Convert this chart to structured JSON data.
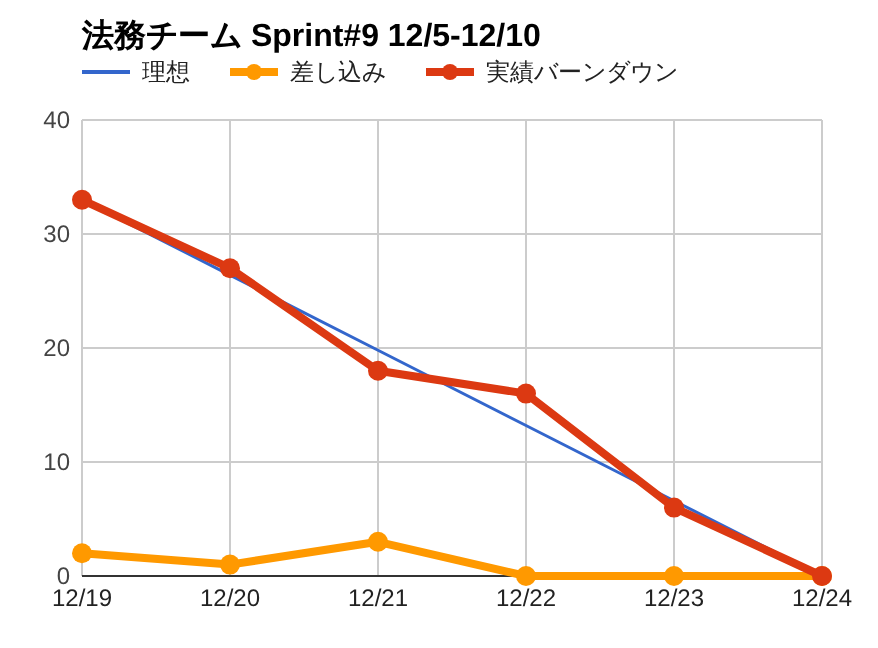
{
  "chart_data": {
    "type": "line",
    "title": "法務チーム Sprint#9 12/5-12/10",
    "categories": [
      "12/19",
      "12/20",
      "12/21",
      "12/22",
      "12/23",
      "12/24"
    ],
    "series": [
      {
        "name": "理想",
        "color": "#3366cc",
        "values": [
          33,
          26.4,
          19.8,
          13.2,
          6.6,
          0
        ],
        "marker": "none"
      },
      {
        "name": "差し込み",
        "color": "#ff9900",
        "values": [
          2,
          1,
          3,
          0,
          0,
          0
        ],
        "marker": "circle"
      },
      {
        "name": "実績バーンダウン",
        "color": "#dc3912",
        "values": [
          33,
          27,
          18,
          16,
          6,
          0
        ],
        "marker": "circle"
      }
    ],
    "ylim": [
      0,
      40
    ],
    "yticks": [
      0,
      10,
      20,
      30,
      40
    ],
    "grid": true,
    "legend": "top left"
  }
}
